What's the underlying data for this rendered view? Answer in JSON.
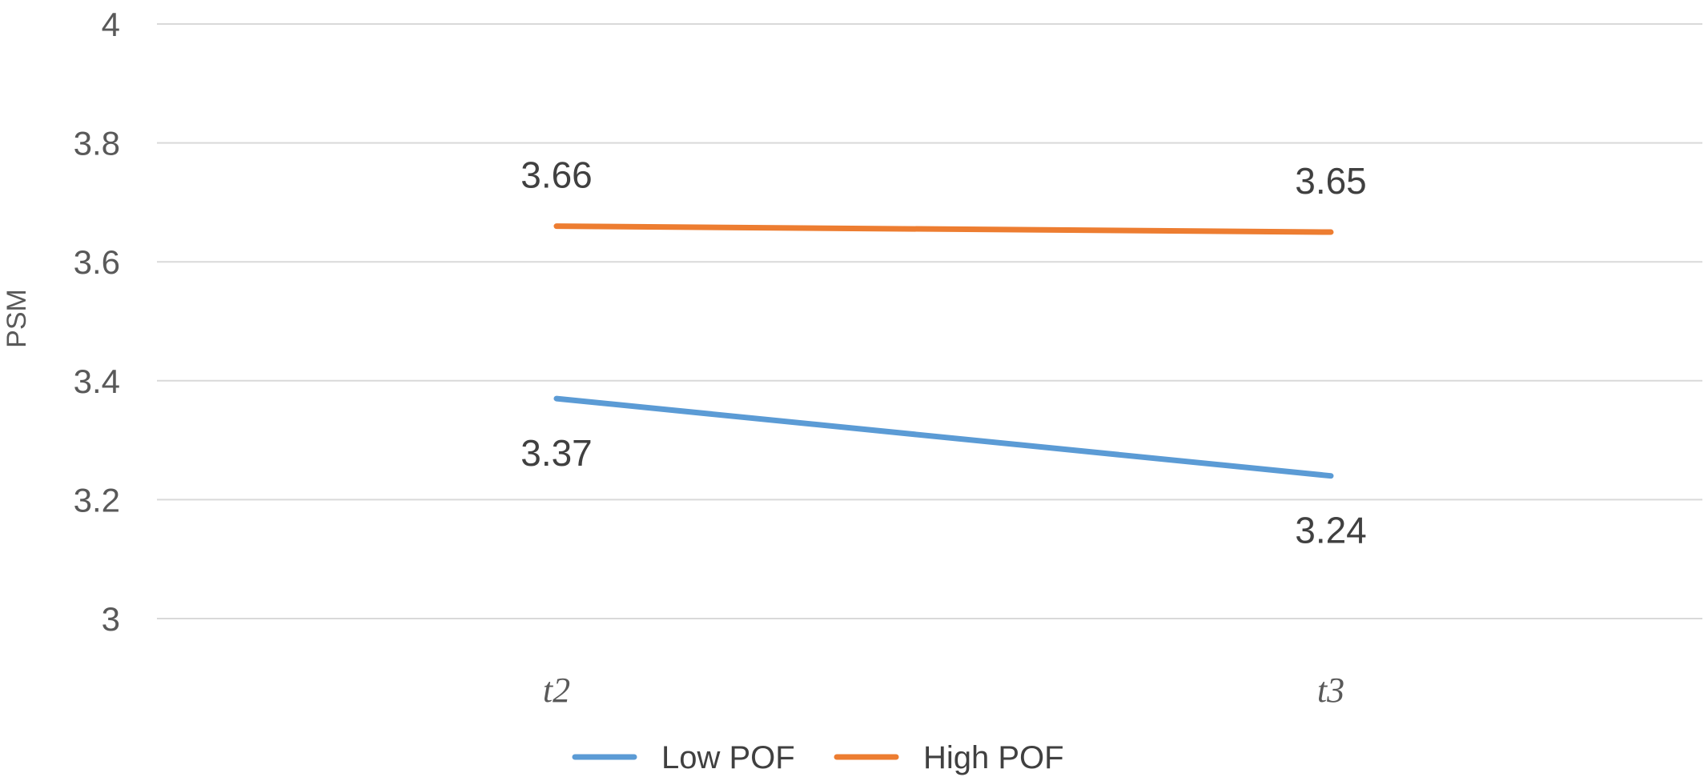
{
  "chart_data": {
    "type": "line",
    "categories": [
      "t2",
      "t3"
    ],
    "category_prefix": "t",
    "ylabel": "PSM",
    "xlabel": "",
    "ylim": [
      3,
      4
    ],
    "yticks": [
      "3",
      "3.2",
      "3.4",
      "3.6",
      "3.8",
      "4"
    ],
    "grid": true,
    "legend_position": "bottom",
    "series": [
      {
        "name": "Low POF",
        "values": [
          3.37,
          3.24
        ],
        "data_labels": [
          "3.37",
          "3.24"
        ],
        "label_position": "below",
        "color": "#5b9bd5"
      },
      {
        "name": "High POF",
        "values": [
          3.66,
          3.65
        ],
        "data_labels": [
          "3.66",
          "3.65"
        ],
        "label_position": "above",
        "color": "#ed7d31"
      }
    ]
  }
}
